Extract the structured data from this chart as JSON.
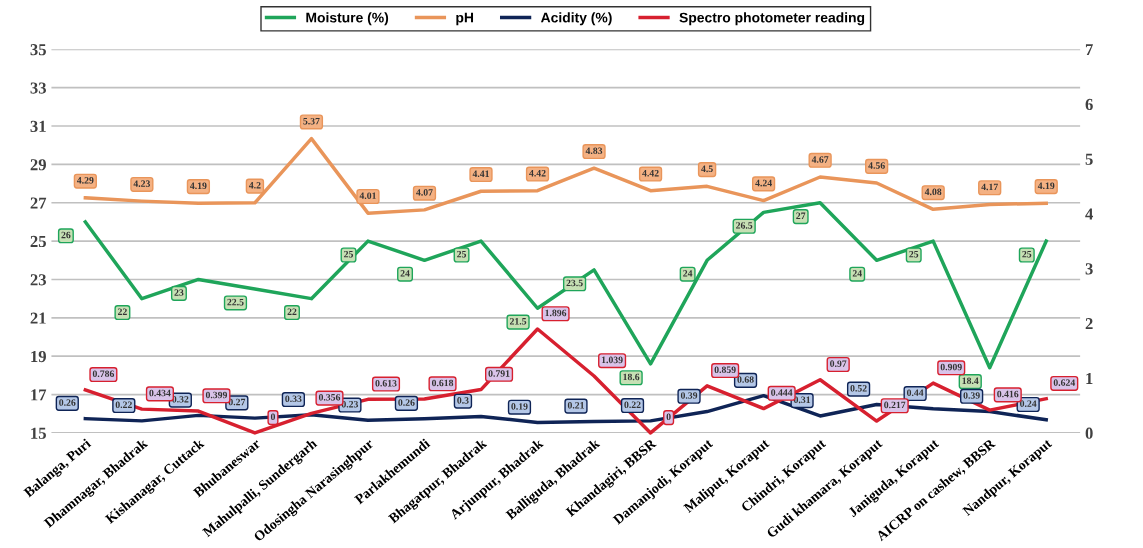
{
  "chart_data": {
    "type": "line",
    "categories": [
      "Balanga, Puri",
      "Dhamnagar, Bhadrak",
      "Kishanagar, Cuttack",
      "Bhubaneswar",
      "Mahulpalli, Sundergarh",
      "Odosingha Narasinghpur",
      "Parlakhemundi",
      "Bhagatpur, Bhadrak",
      "Arjunpur, Bhadrak",
      "Balliguda, Bhadrak",
      "Khandagiri, BBSR",
      "Damanjodi, Koraput",
      "Maliput, Koraput",
      "Chindri, Koraput",
      "Gudi khamara, Koraput",
      "Janiguda, Koraput",
      "AICRP on cashew, BBSR",
      "Nandpur, Koraput"
    ],
    "series": [
      {
        "name": "Moisture (%)",
        "color": "#1fa55a",
        "values": [
          26,
          22,
          23,
          22.5,
          22,
          25,
          24,
          25,
          21.5,
          23.5,
          18.6,
          24,
          26.5,
          27,
          24,
          25,
          18.4,
          25
        ]
      },
      {
        "name": "pH",
        "color": "#e9955a",
        "axis": "y2",
        "values": [
          4.29,
          4.23,
          4.19,
          4.2,
          5.37,
          4.01,
          4.07,
          4.41,
          4.42,
          4.83,
          4.42,
          4.5,
          4.24,
          4.67,
          4.56,
          4.08,
          4.17,
          4.19
        ]
      },
      {
        "name": "Acidity (%)",
        "color": "#0f2456",
        "axis": "y2",
        "values": [
          0.26,
          0.22,
          0.32,
          0.27,
          0.33,
          0.23,
          0.26,
          0.3,
          0.19,
          0.21,
          0.22,
          0.39,
          0.68,
          0.31,
          0.52,
          0.44,
          0.39,
          0.24
        ]
      },
      {
        "name": "Spectro photometer reading",
        "color": "#d7202f",
        "axis": "y2",
        "values": [
          0.786,
          0.434,
          0.399,
          0,
          0.356,
          0.613,
          0.618,
          0.791,
          1.896,
          1.039,
          0,
          0.859,
          0.444,
          0.97,
          0.217,
          0.909,
          0.416,
          0.624
        ]
      }
    ],
    "ylim": [
      15,
      35
    ],
    "yticks": [
      15,
      17,
      19,
      21,
      23,
      25,
      27,
      29,
      31,
      33,
      35
    ],
    "y2lim": [
      0,
      7
    ],
    "y2ticks": [
      0,
      1,
      2,
      3,
      4,
      5,
      6,
      7
    ],
    "grid": "y",
    "legend": "top",
    "data_labels": true
  }
}
